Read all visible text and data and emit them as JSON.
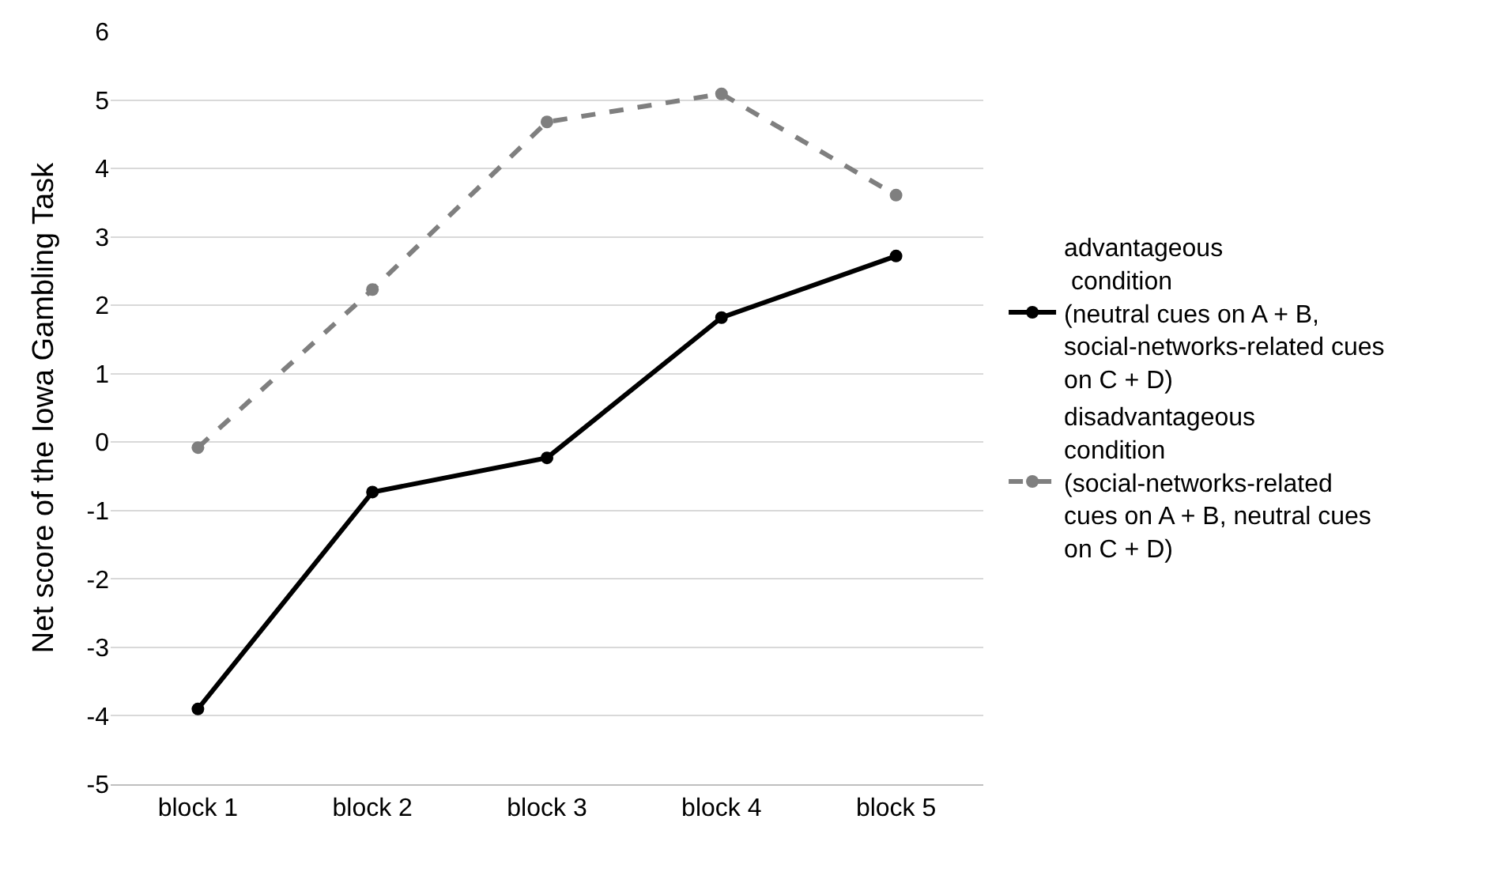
{
  "chart_data": {
    "type": "line",
    "ylabel": "Net score of the Iowa Gambling Task",
    "categories": [
      "block 1",
      "block 2",
      "block 3",
      "block 4",
      "block 5"
    ],
    "series": [
      {
        "name": "advantageous\n condition\n(neutral cues on A + B,\nsocial-networks-related cues\non C + D)",
        "color": "#000000",
        "line_style": "solid",
        "values": [
          -3.9,
          -0.73,
          -0.23,
          1.82,
          2.72
        ]
      },
      {
        "name": "disadvantageous\ncondition\n(social-networks-related\ncues on A + B, neutral cues\non C + D)",
        "color": "#7f7f7f",
        "line_style": "dashed",
        "values": [
          -0.08,
          2.23,
          4.68,
          5.09,
          3.61
        ]
      }
    ],
    "ylim": [
      -5,
      6
    ],
    "yticks": [
      -5,
      -4,
      -3,
      -2,
      -1,
      0,
      1,
      2,
      3,
      4,
      5,
      6
    ],
    "grid": "y",
    "legend": "right",
    "marker": "circle"
  }
}
